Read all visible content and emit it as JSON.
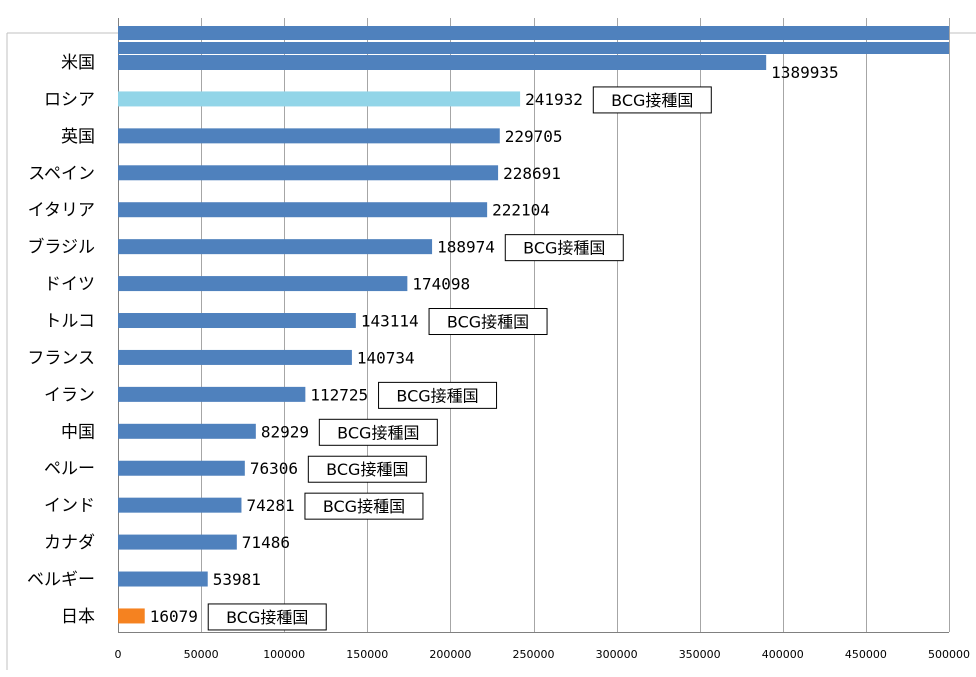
{
  "colors": {
    "default": "#4f81bd",
    "russia": "#92d5e8",
    "japan": "#f58220",
    "grid": "#a6a6a6",
    "axis": "#808080"
  },
  "chart_data": {
    "type": "bar",
    "orientation": "horizontal",
    "categories": [
      "米国",
      "ロシア",
      "英国",
      "スペイン",
      "イタリア",
      "ブラジル",
      "ドイツ",
      "トルコ",
      "フランス",
      "イラン",
      "中国",
      "ペルー",
      "インド",
      "カナダ",
      "ベルギー",
      "日本"
    ],
    "values": [
      1389935,
      241932,
      229705,
      228691,
      222104,
      188974,
      174098,
      143114,
      140734,
      112725,
      82929,
      76306,
      74281,
      71486,
      53981,
      16079
    ],
    "value_labels": [
      "1389935",
      "241932",
      "229705",
      "228691",
      "222104",
      "188974",
      "174098",
      "143114",
      "140734",
      "112725",
      "82929",
      "76306",
      "74281",
      "71486",
      "53981",
      "16079"
    ],
    "bar_colors": [
      "default",
      "russia",
      "default",
      "default",
      "default",
      "default",
      "default",
      "default",
      "default",
      "default",
      "default",
      "default",
      "default",
      "default",
      "default",
      "japan"
    ],
    "notes": [
      "",
      "BCG接種国",
      "",
      "",
      "",
      "BCG接種国",
      "",
      "BCG接種国",
      "",
      "BCG接種国",
      "BCG接種国",
      "BCG接種国",
      "BCG接種国",
      "",
      "",
      "BCG接種国"
    ],
    "xlim": [
      0,
      500000
    ],
    "xticks": [
      0,
      50000,
      100000,
      150000,
      200000,
      250000,
      300000,
      350000,
      400000,
      450000,
      500000
    ],
    "xtick_labels": [
      "0",
      "50000",
      "100000",
      "150000",
      "200000",
      "250000",
      "300000",
      "350000",
      "400000",
      "450000",
      "500000"
    ],
    "grid": true,
    "title": "",
    "xlabel": "",
    "ylabel": ""
  }
}
